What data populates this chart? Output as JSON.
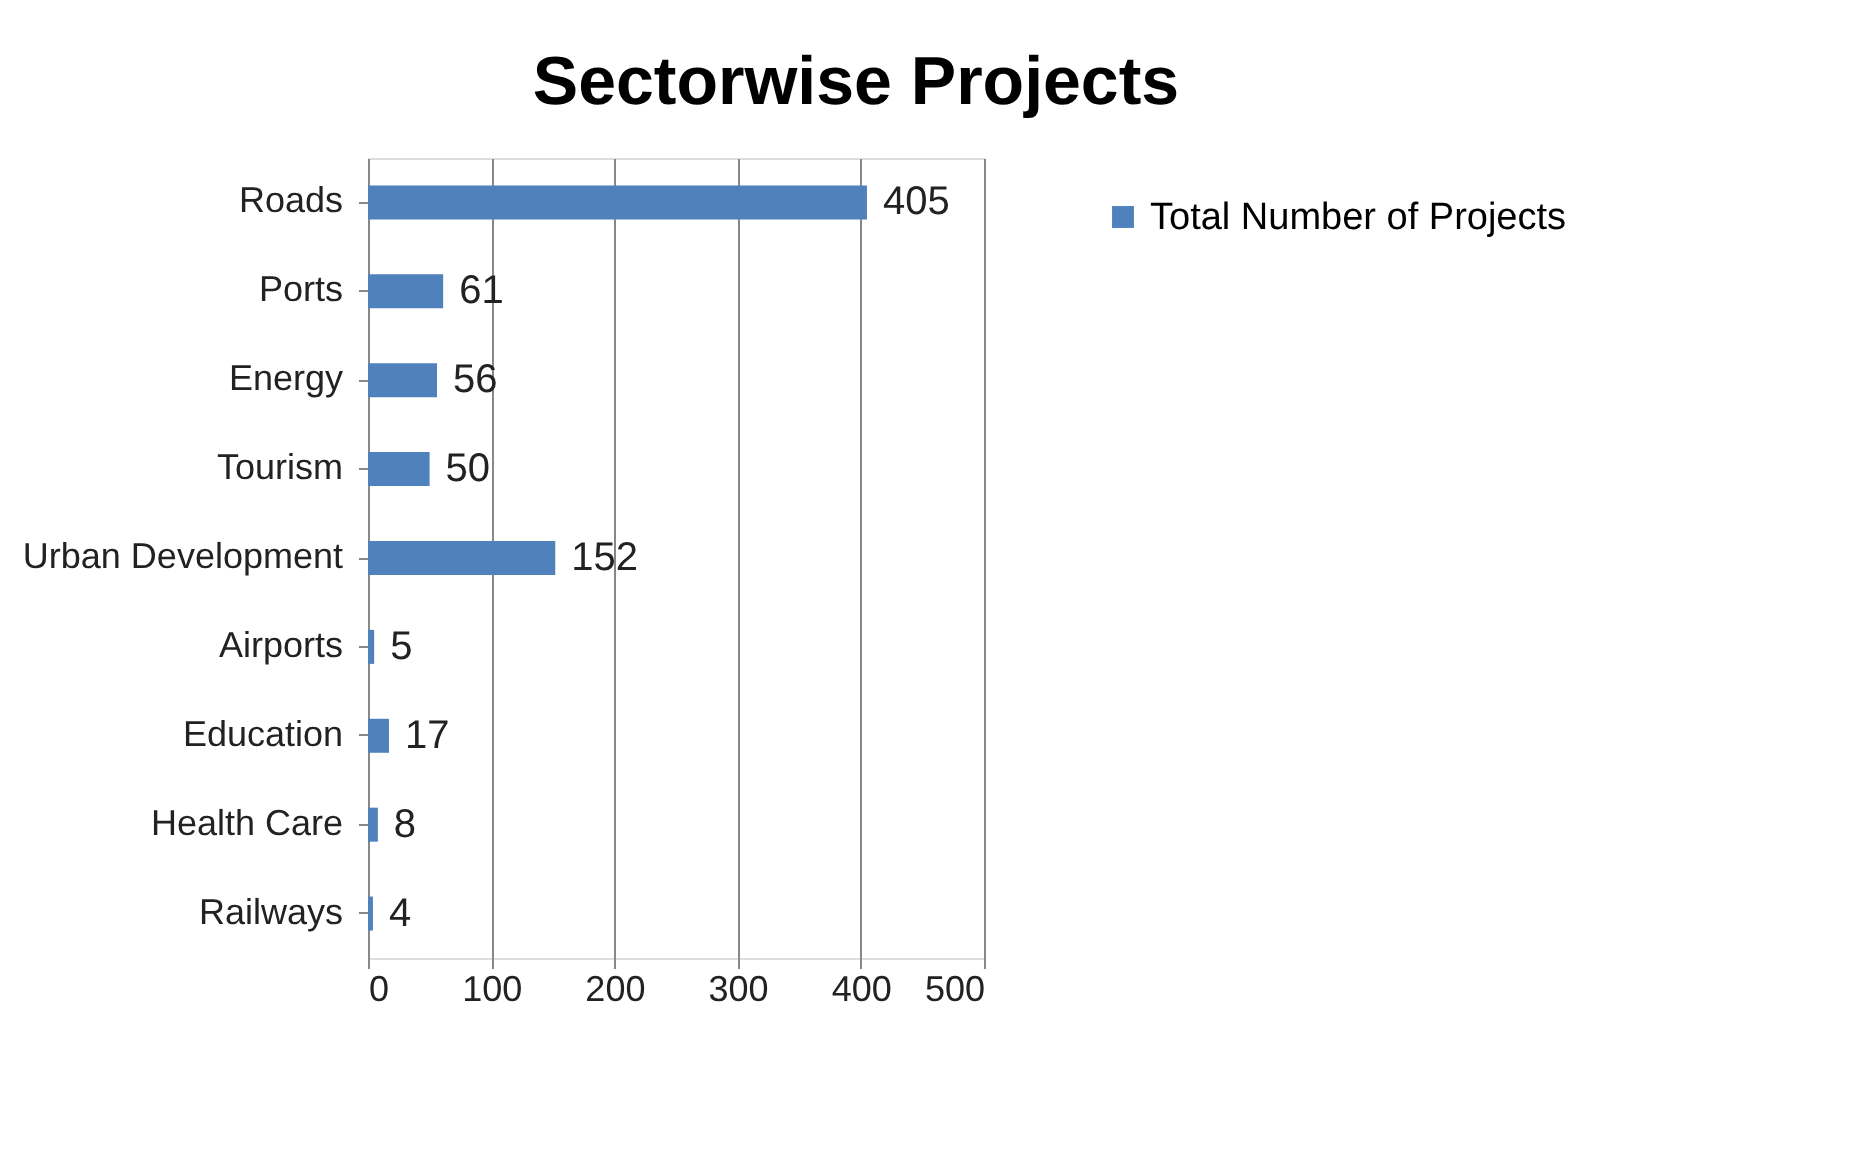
{
  "chart_data": {
    "type": "bar",
    "orientation": "horizontal",
    "title": "Sectorwise Projects",
    "categories": [
      "Roads",
      "Ports",
      "Energy",
      "Tourism",
      "Urban Development",
      "Airports",
      "Education",
      "Health Care",
      "Railways"
    ],
    "series": [
      {
        "name": "Total Number of Projects",
        "color": "#4f81bd",
        "values": [
          405,
          61,
          56,
          50,
          152,
          5,
          17,
          8,
          4
        ]
      }
    ],
    "xlim": [
      0,
      500
    ],
    "xticks": [
      0,
      100,
      200,
      300,
      400,
      500
    ],
    "grid": "x",
    "legend": "right",
    "data_labels": true
  }
}
